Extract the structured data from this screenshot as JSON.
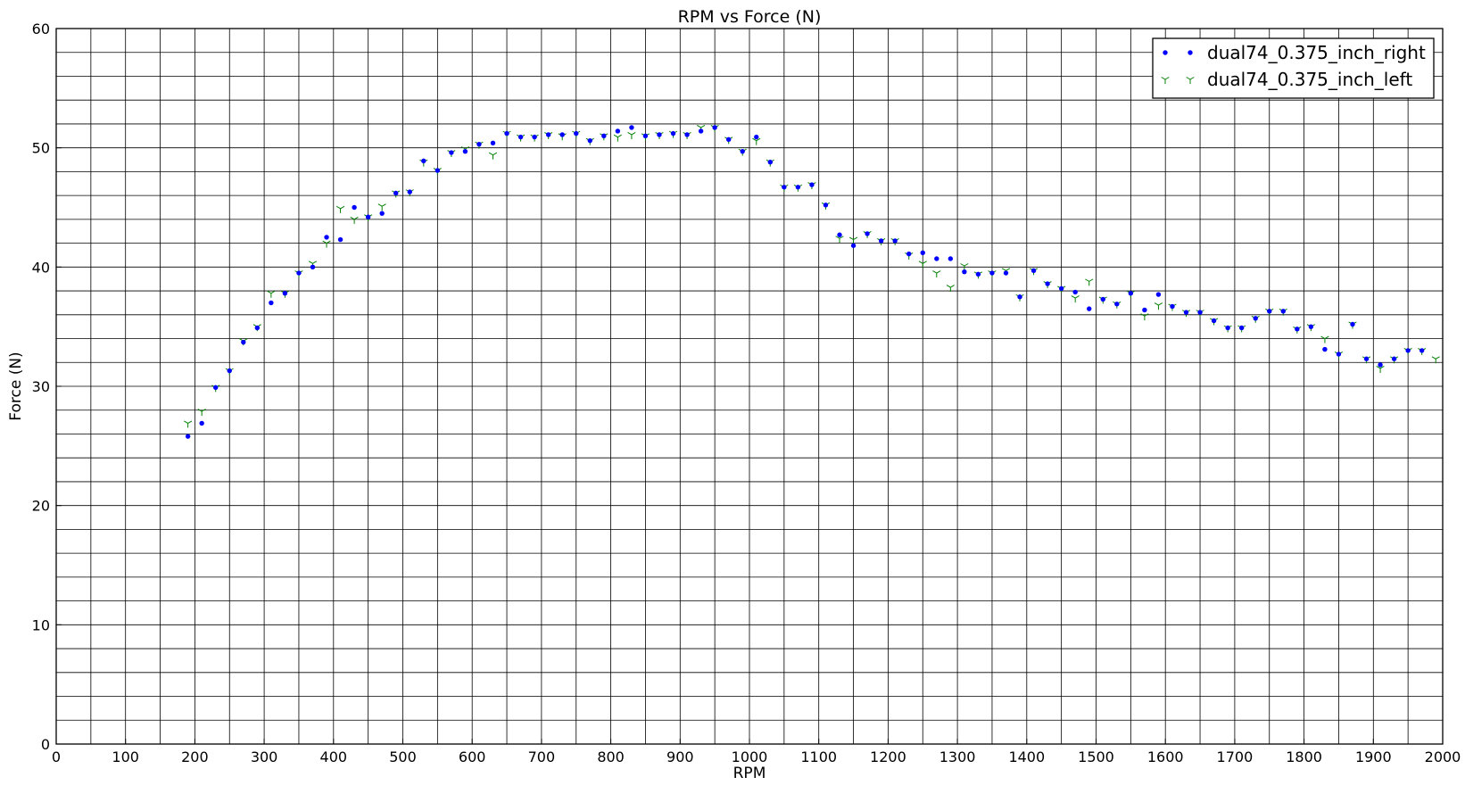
{
  "chart_data": {
    "type": "scatter",
    "title": "RPM vs Force (N)",
    "xlabel": "RPM",
    "ylabel": "Force (N)",
    "xlim": [
      0,
      2000
    ],
    "ylim": [
      0,
      60
    ],
    "xticks": [
      0,
      100,
      200,
      300,
      400,
      500,
      600,
      700,
      800,
      900,
      1000,
      1100,
      1200,
      1300,
      1400,
      1500,
      1600,
      1700,
      1800,
      1900,
      2000
    ],
    "yticks": [
      0,
      10,
      20,
      30,
      40,
      50,
      60
    ],
    "x_minor_grid_step": 50,
    "y_minor_grid_step": 2,
    "grid": true,
    "legend_position": "top-right",
    "series": [
      {
        "name": "dual74_0.375_inch_right",
        "color": "#0000ff",
        "marker": "dot",
        "x": [
          190,
          210,
          230,
          250,
          270,
          290,
          310,
          330,
          350,
          370,
          390,
          410,
          430,
          450,
          470,
          490,
          510,
          530,
          550,
          570,
          590,
          610,
          630,
          650,
          670,
          690,
          710,
          730,
          750,
          770,
          790,
          810,
          830,
          850,
          870,
          890,
          910,
          930,
          950,
          970,
          990,
          1010,
          1030,
          1050,
          1070,
          1090,
          1110,
          1130,
          1150,
          1170,
          1190,
          1210,
          1230,
          1250,
          1270,
          1290,
          1310,
          1330,
          1350,
          1370,
          1390,
          1410,
          1430,
          1450,
          1470,
          1490,
          1510,
          1530,
          1550,
          1570,
          1590,
          1610,
          1630,
          1650,
          1670,
          1690,
          1710,
          1730,
          1750,
          1770,
          1790,
          1810,
          1830,
          1850,
          1870,
          1890,
          1910,
          1930,
          1950,
          1970
        ],
        "y": [
          25.8,
          26.9,
          29.9,
          31.3,
          33.7,
          34.9,
          37.0,
          37.8,
          39.5,
          40.0,
          42.5,
          42.3,
          45.0,
          44.2,
          44.5,
          46.2,
          46.3,
          48.9,
          48.1,
          49.6,
          49.7,
          50.3,
          50.4,
          51.2,
          50.9,
          50.9,
          51.1,
          51.1,
          51.2,
          50.6,
          51.0,
          51.4,
          51.7,
          51.0,
          51.1,
          51.2,
          51.1,
          51.4,
          51.7,
          50.7,
          49.7,
          50.9,
          48.8,
          46.7,
          46.7,
          46.9,
          45.2,
          42.7,
          41.8,
          42.8,
          42.2,
          42.2,
          41.1,
          41.2,
          40.7,
          40.7,
          39.6,
          39.4,
          39.5,
          39.5,
          37.5,
          39.7,
          38.6,
          38.2,
          37.9,
          36.5,
          37.3,
          36.9,
          37.8,
          36.4,
          37.7,
          36.7,
          36.2,
          36.2,
          35.5,
          34.9,
          34.9,
          35.7,
          36.3,
          36.3,
          34.8,
          35.0,
          33.1,
          32.7,
          35.2,
          32.3,
          31.8,
          32.3,
          33.0,
          33.0
        ]
      },
      {
        "name": "dual74_0.375_inch_left",
        "color": "#008000",
        "marker": "tri_down",
        "x": [
          190,
          210,
          230,
          250,
          270,
          290,
          310,
          330,
          350,
          370,
          390,
          410,
          430,
          450,
          470,
          490,
          510,
          530,
          550,
          570,
          590,
          610,
          630,
          650,
          670,
          690,
          710,
          730,
          750,
          770,
          790,
          810,
          830,
          850,
          870,
          890,
          910,
          930,
          950,
          970,
          990,
          1010,
          1030,
          1050,
          1070,
          1090,
          1110,
          1130,
          1150,
          1170,
          1190,
          1210,
          1230,
          1250,
          1270,
          1290,
          1310,
          1330,
          1350,
          1370,
          1390,
          1410,
          1430,
          1450,
          1470,
          1490,
          1510,
          1530,
          1550,
          1570,
          1590,
          1610,
          1630,
          1650,
          1670,
          1690,
          1710,
          1730,
          1750,
          1770,
          1790,
          1810,
          1830,
          1850,
          1870,
          1890,
          1910,
          1930,
          1950,
          1970,
          1990
        ],
        "y": [
          26.9,
          27.9,
          29.9,
          31.3,
          33.8,
          35.0,
          37.8,
          37.8,
          39.5,
          40.3,
          42.0,
          44.9,
          44.0,
          44.2,
          45.1,
          46.2,
          46.3,
          48.8,
          48.1,
          49.6,
          49.9,
          50.3,
          49.4,
          51.2,
          50.9,
          50.9,
          51.1,
          51.0,
          51.2,
          50.6,
          51.0,
          50.9,
          51.1,
          51.0,
          51.1,
          51.2,
          51.1,
          51.7,
          51.7,
          50.7,
          49.7,
          50.6,
          48.8,
          46.7,
          46.7,
          46.9,
          45.2,
          42.4,
          42.3,
          42.8,
          42.2,
          42.2,
          41.0,
          40.3,
          39.5,
          38.3,
          40.1,
          39.4,
          39.5,
          39.7,
          37.5,
          39.7,
          38.6,
          38.2,
          37.4,
          38.8,
          37.3,
          36.9,
          37.8,
          35.9,
          36.8,
          36.7,
          36.2,
          36.2,
          35.5,
          34.9,
          34.9,
          35.7,
          36.3,
          36.3,
          34.8,
          35.0,
          34.0,
          32.7,
          35.2,
          32.3,
          31.5,
          32.3,
          33.0,
          33.0,
          32.3
        ]
      }
    ]
  }
}
